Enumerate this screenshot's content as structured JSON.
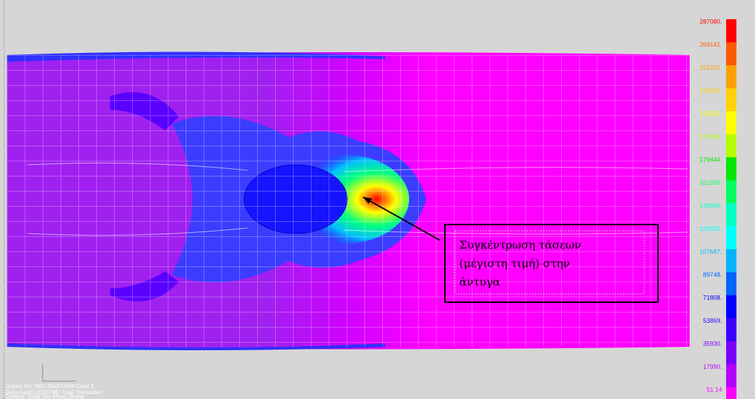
{
  "legend": {
    "items": [
      {
        "label": "287080.",
        "color": "#ff0000"
      },
      {
        "label": "269141.",
        "color": "#ff5a00"
      },
      {
        "label": "251201.",
        "color": "#ffa000"
      },
      {
        "label": "233262.",
        "color": "#ffd200"
      },
      {
        "label": "215323.",
        "color": "#ffff00"
      },
      {
        "label": "197384.",
        "color": "#b4ff00"
      },
      {
        "label": "179444.",
        "color": "#00e600"
      },
      {
        "label": "161505.",
        "color": "#00ff60"
      },
      {
        "label": "143565.",
        "color": "#00ffc0"
      },
      {
        "label": "125626.",
        "color": "#00ffff"
      },
      {
        "label": "107687.",
        "color": "#00b4ff"
      },
      {
        "label": "89748.",
        "color": "#0064ff"
      },
      {
        "label": "71808.",
        "color": "#0000ff"
      },
      {
        "label": "53869.",
        "color": "#3c00ff"
      },
      {
        "label": "35930.",
        "color": "#7800ff"
      },
      {
        "label": "17990.",
        "color": "#b400ff"
      },
      {
        "label": "51.14",
        "color": "#ff00ff"
      }
    ]
  },
  "annotation": {
    "lines": [
      "Συγκέντρωση τάσεων",
      "(μέγιστη τιμή) στην",
      "άντυγα"
    ]
  },
  "info": {
    "lines": [
      "Output Set: MSC/NASTRAN Case 1",
      "Deformed(0.0000798): Total Translation",
      "Contour: Solid Von Mises Stress"
    ]
  }
}
